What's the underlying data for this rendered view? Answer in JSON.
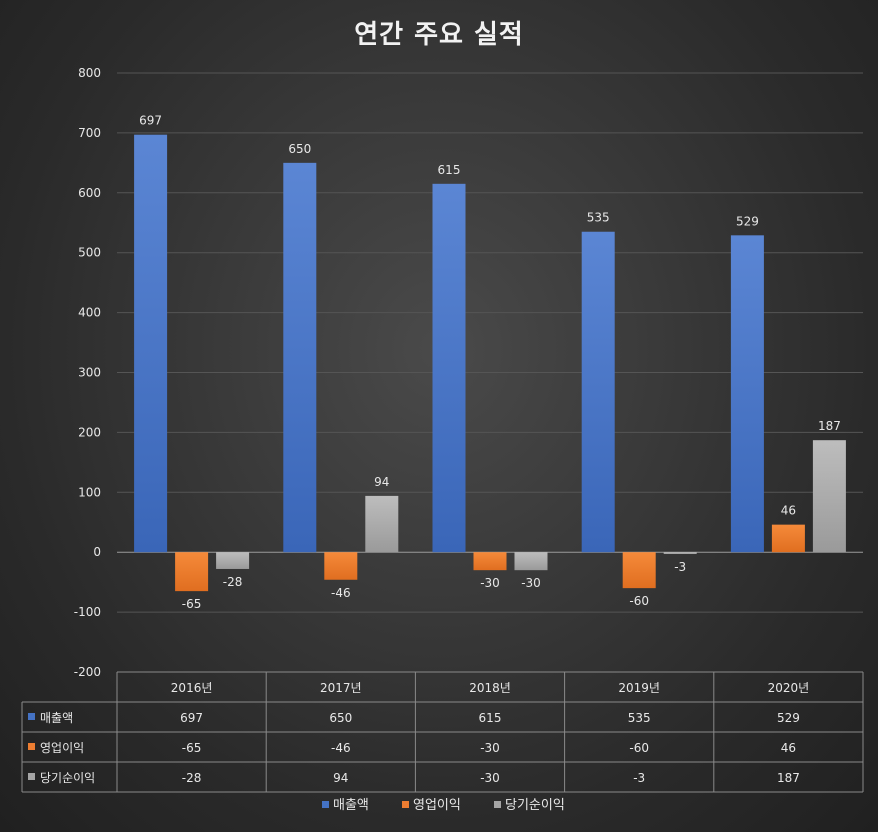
{
  "chart_data": {
    "type": "bar",
    "title": "연간 주요 실적",
    "categories": [
      "2016년",
      "2017년",
      "2018년",
      "2019년",
      "2020년"
    ],
    "series": [
      {
        "name": "매출액",
        "values": [
          697,
          650,
          615,
          535,
          529
        ],
        "color": "#4472c4"
      },
      {
        "name": "영업이익",
        "values": [
          -65,
          -46,
          -30,
          -60,
          46
        ],
        "color": "#ed7d31"
      },
      {
        "name": "당기순이익",
        "values": [
          -28,
          94,
          -30,
          -3,
          187
        ],
        "color": "#a5a5a5"
      }
    ],
    "ylim": [
      -200,
      800
    ],
    "yticks": [
      800,
      700,
      600,
      500,
      400,
      300,
      200,
      100,
      0,
      -100,
      -200
    ],
    "grid": true,
    "data_table": true,
    "legend_position": "bottom"
  }
}
